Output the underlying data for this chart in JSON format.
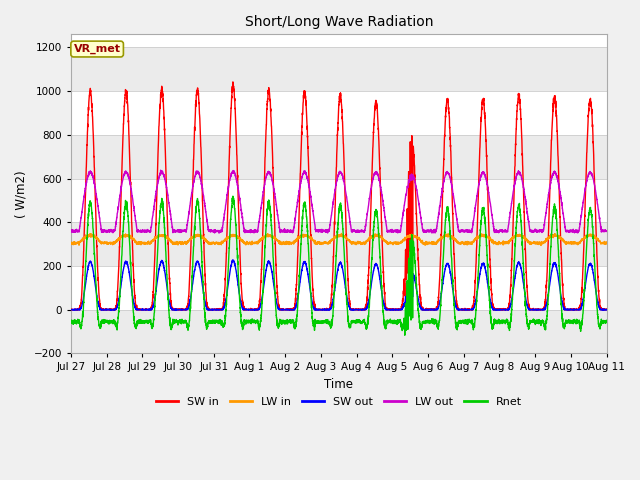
{
  "title": "Short/Long Wave Radiation",
  "ylabel": "( W/m2)",
  "xlabel": "Time",
  "ylim": [
    -200,
    1260
  ],
  "yticks": [
    -200,
    0,
    200,
    400,
    600,
    800,
    1000,
    1200
  ],
  "fig_bg_color": "#f0f0f0",
  "plot_bg_color": "#ffffff",
  "grid_color": "#dddddd",
  "series": {
    "SW_in": {
      "color": "#ff0000",
      "label": "SW in",
      "lw": 1.0
    },
    "LW_in": {
      "color": "#ff9900",
      "label": "LW in",
      "lw": 1.0
    },
    "SW_out": {
      "color": "#0000ff",
      "label": "SW out",
      "lw": 1.0
    },
    "LW_out": {
      "color": "#cc00cc",
      "label": "LW out",
      "lw": 1.0
    },
    "Rnet": {
      "color": "#00cc00",
      "label": "Rnet",
      "lw": 1.0
    }
  },
  "n_days": 15,
  "pts_per_day": 288,
  "x_tick_labels": [
    "Jul 27",
    "Jul 28",
    "Jul 29",
    "Jul 30",
    "Jul 31",
    "Aug 1",
    "Aug 2",
    "Aug 3",
    "Aug 4",
    "Aug 5",
    "Aug 6",
    "Aug 7",
    "Aug 8",
    "Aug 9",
    "Aug 10",
    "Aug 11"
  ],
  "annotation_text": "VR_met",
  "annotation_color": "#990000",
  "annotation_bg": "#ffffcc",
  "annotation_border": "#999900"
}
